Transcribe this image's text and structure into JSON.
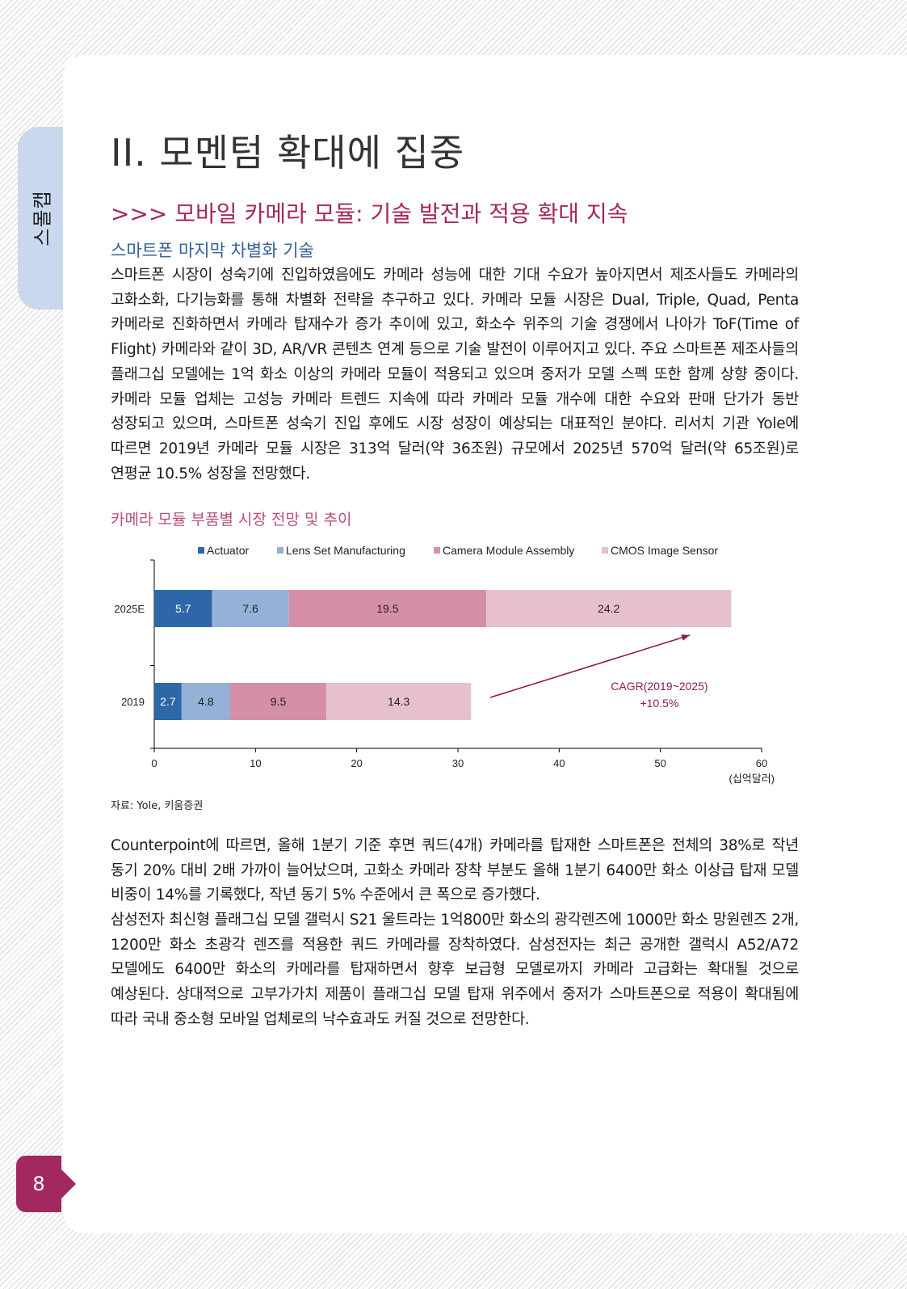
{
  "side_tab": {
    "label": "스몰캡"
  },
  "page_number": "8",
  "section": {
    "title": "II. 모멘텀 확대에 집중"
  },
  "subsection": {
    "title": ">>> 모바일 카메라 모듈: 기술 발전과 적용 확대 지속"
  },
  "topic": {
    "title": "스마트폰 마지막 차별화 기술"
  },
  "paragraphs": {
    "p1": "스마트폰 시장이 성숙기에 진입하였음에도 카메라 성능에 대한 기대 수요가 높아지면서 제조사들도 카메라의 고화소화, 다기능화를 통해 차별화 전략을 추구하고 있다. 카메라 모듈 시장은 Dual, Triple, Quad, Penta 카메라로 진화하면서 카메라 탑재수가 증가 추이에 있고, 화소수 위주의 기술 경쟁에서 나아가 ToF(Time of Flight) 카메라와 같이 3D, AR/VR 콘텐츠 연계 등으로 기술 발전이 이루어지고 있다. 주요 스마트폰 제조사들의 플래그십 모델에는 1억 화소 이상의 카메라 모듈이 적용되고 있으며 중저가 모델 스펙 또한 함께 상향 중이다. 카메라 모듈 업체는 고성능 카메라 트렌드 지속에 따라 카메라 모듈 개수에 대한 수요와 판매 단가가 동반 성장되고 있으며, 스마트폰 성숙기 진입 후에도 시장 성장이 예상되는 대표적인 분야다. 리서치 기관 Yole에 따르면 2019년 카메라 모듈 시장은 313억 달러(약 36조원) 규모에서 2025년 570억 달러(약 65조원)로 연평균 10.5% 성장을 전망했다.",
    "p2": "Counterpoint에 따르면, 올해 1분기 기준 후면 쿼드(4개) 카메라를 탑재한 스마트폰은 전체의 38%로 작년 동기 20% 대비 2배 가까이 늘어났으며, 고화소 카메라 장착 부분도 올해 1분기 6400만 화소 이상급 탑재 모델 비중이 14%를 기록했다, 작년 동기 5% 수준에서 큰 폭으로 증가했다.",
    "p3": "삼성전자 최신형 플래그십 모델 갤럭시 S21 울트라는 1억800만 화소의 광각렌즈에 1000만 화소 망원렌즈 2개, 1200만 화소 초광각 렌즈를 적용한 쿼드 카메라를 장착하였다. 삼성전자는 최근 공개한 갤럭시 A52/A72 모델에도 6400만 화소의 카메라를 탑재하면서 향후 보급형 모델로까지 카메라 고급화는 확대될 것으로 예상된다. 상대적으로 고부가가치 제품이 플래그십 모델 탑재 위주에서 중저가 스마트폰으로 적용이 확대됨에 따라 국내 중소형 모바일 업체로의 낙수효과도 커질 것으로 전망한다."
  },
  "chart_title": "카메라 모듈 부품별 시장 전망 및 추이",
  "chart_source": "자료: Yole, 키움증권",
  "chart_data": {
    "type": "bar",
    "orientation": "horizontal",
    "stacked": true,
    "categories": [
      "2025E",
      "2019"
    ],
    "series": [
      {
        "name": "Actuator",
        "values": [
          5.7,
          2.7
        ],
        "color": "#2e67a8",
        "label_color": "#ffffff"
      },
      {
        "name": "Lens Set Manufacturing",
        "values": [
          7.6,
          4.8
        ],
        "color": "#95b1d7",
        "label_color": "#222222"
      },
      {
        "name": "Camera Module Assembly",
        "values": [
          19.5,
          9.5
        ],
        "color": "#d590a8",
        "label_color": "#222222"
      },
      {
        "name": "CMOS Image Sensor",
        "values": [
          24.2,
          14.3
        ],
        "color": "#e7c0cf",
        "label_color": "#222222"
      }
    ],
    "xlim": [
      0,
      60
    ],
    "xticks": [
      0,
      10,
      20,
      30,
      40,
      50,
      60
    ],
    "unit_label": "(십억달러)",
    "legend_position": "top",
    "annotation": {
      "line1": "CAGR(2019~2025)",
      "line2": "+10.5%",
      "color": "#8b1b55"
    },
    "grid": false
  }
}
